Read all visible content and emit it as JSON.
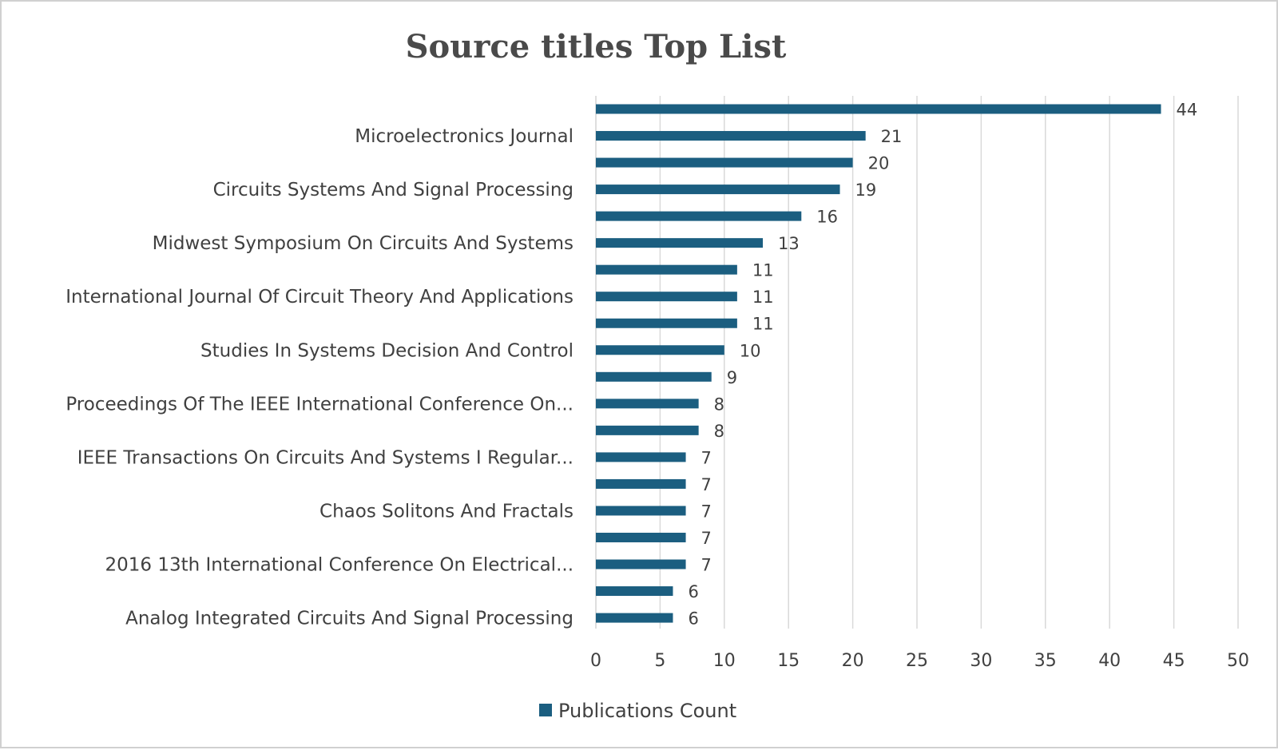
{
  "chart_data": {
    "type": "bar",
    "orientation": "horizontal",
    "title": "Source titles Top List",
    "xlabel": "",
    "ylabel": "",
    "xlim": [
      0,
      50
    ],
    "xticks": [
      0,
      5,
      10,
      15,
      20,
      25,
      30,
      35,
      40,
      45,
      50
    ],
    "grid": true,
    "legend_position": "bottom",
    "color": "#1b5e80",
    "categories": [
      "",
      "Microelectronics Journal",
      "",
      "Circuits Systems And Signal Processing",
      "",
      "Midwest Symposium On Circuits And Systems",
      "",
      "International Journal Of Circuit Theory And Applications",
      "",
      "Studies In Systems Decision And Control",
      "",
      "Proceedings Of The IEEE International Conference On...",
      "",
      "IEEE Transactions On Circuits And Systems I Regular...",
      "",
      "Chaos Solitons And Fractals",
      "",
      "2016 13th International Conference On Electrical...",
      "",
      "Analog Integrated Circuits And Signal Processing"
    ],
    "series": [
      {
        "name": "Publications Count",
        "values": [
          44,
          21,
          20,
          19,
          16,
          13,
          11,
          11,
          11,
          10,
          9,
          8,
          8,
          7,
          7,
          7,
          7,
          7,
          6,
          6
        ]
      }
    ]
  }
}
